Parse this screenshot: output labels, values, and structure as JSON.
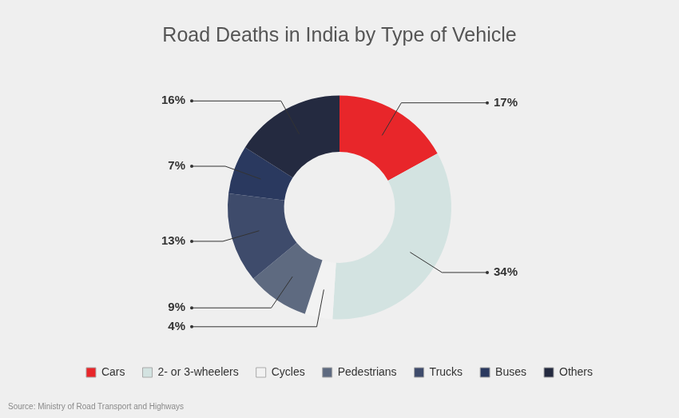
{
  "chart_data": {
    "type": "doughnut",
    "title": "Road Deaths in India by Type of Vehicle",
    "categories": [
      "Cars",
      "2- or 3-wheelers",
      "Cycles",
      "Pedestrians",
      "Trucks",
      "Buses",
      "Others"
    ],
    "values": [
      17,
      34,
      4,
      9,
      13,
      7,
      16
    ],
    "value_labels": [
      "17%",
      "34%",
      "4%",
      "9%",
      "13%",
      "7%",
      "16%"
    ],
    "colors": [
      "#e8262a",
      "#d3e3e1",
      "#f2f2f2",
      "#5e6a80",
      "#3e4b6b",
      "#2a395f",
      "#242a40"
    ],
    "data_labels": true,
    "legend": "bottom",
    "source": "Source: Ministry of Road Transport and Highways"
  }
}
